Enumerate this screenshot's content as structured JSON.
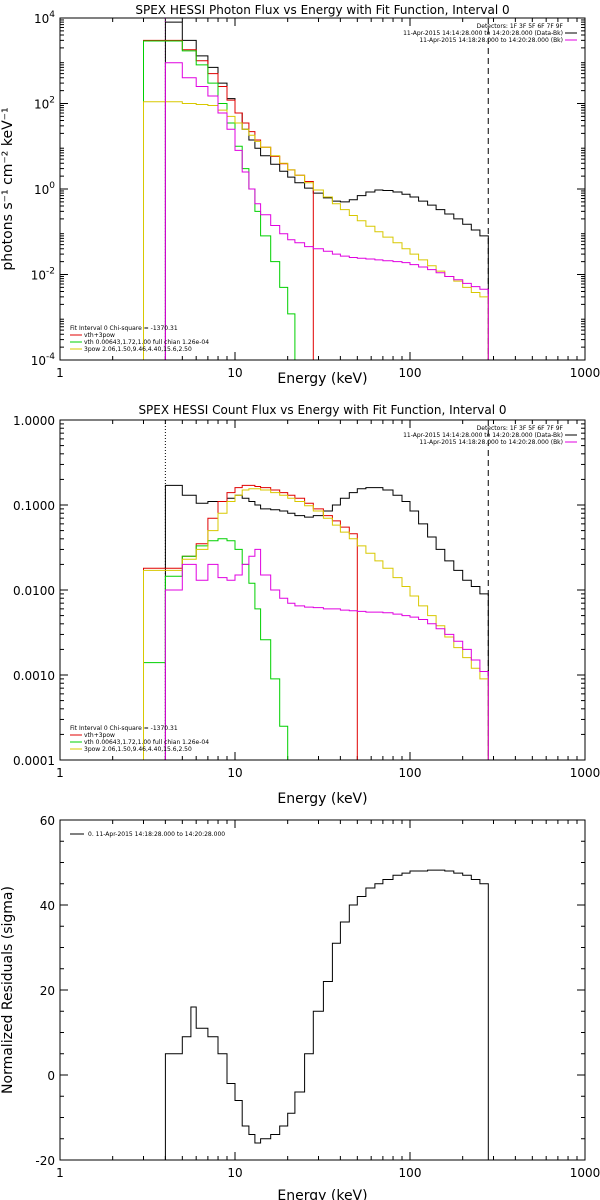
{
  "chart_data": [
    {
      "type": "line",
      "title": "SPEX HESSI Photon Flux vs Energy with Fit Function, Interval 0",
      "xlabel": "Energy (keV)",
      "ylabel": "photons s⁻¹ cm⁻² keV⁻¹",
      "xscale": "log",
      "yscale": "log",
      "xlim": [
        1,
        1000
      ],
      "ylim": [
        0.0001,
        10000
      ],
      "xtick_labels": [
        "1",
        "10",
        "100",
        "1000"
      ],
      "ytick_values": [
        0.0001,
        0.01,
        1,
        100,
        10000
      ],
      "ytick_labels": [
        {
          "base": "10",
          "exp": "-4"
        },
        {
          "base": "10",
          "exp": "-2"
        },
        {
          "base": "10",
          "exp": "0"
        },
        {
          "base": "10",
          "exp": "2"
        },
        {
          "base": "10",
          "exp": "4"
        }
      ],
      "legend_top": {
        "lines": [
          "Detectors: 1F 3F 5F 6F 7F 9F",
          "11-Apr-2015 14:14:28.000 to 14:20:28.000 (Data-Bk)",
          "11-Apr-2015 14:18:28.000 to 14:20:28.000 (Bk)"
        ],
        "colors": [
          "",
          "#000000",
          "#e000e0"
        ]
      },
      "legend_bottom": {
        "lines": [
          "Fit Interval 0   Chi-square = -1370.31",
          "vth+3pow",
          "vth 0.00643,1.72,1.00  full chian 1.26e-04",
          "3pow 2.06,1.50,9.46,4.40,15.6,2.50"
        ],
        "colors": [
          "",
          "#e00000",
          "#00d000",
          "#d8c800"
        ]
      },
      "vlines": [
        {
          "x": 4.0,
          "style": "dotted",
          "color": "#e000e0"
        },
        {
          "x": 280,
          "style": "dashed",
          "color": "#000000"
        }
      ],
      "series": [
        {
          "color": "#000000",
          "x": [
            3,
            4,
            5,
            6,
            7,
            8,
            9,
            10,
            11,
            12,
            13,
            14,
            16,
            18,
            20,
            22,
            25,
            28,
            32,
            36,
            40,
            45,
            50,
            56,
            63,
            70,
            80,
            90,
            100,
            112,
            126,
            141,
            158,
            178,
            200,
            224,
            251,
            280
          ],
          "y": [
            null,
            8000,
            3000,
            1300,
            700,
            300,
            130,
            60,
            25,
            14,
            9,
            6,
            3.8,
            2.6,
            1.9,
            1.4,
            1.05,
            0.8,
            0.62,
            0.52,
            0.5,
            0.56,
            0.7,
            0.85,
            0.95,
            0.92,
            0.85,
            0.75,
            0.65,
            0.52,
            0.42,
            0.33,
            0.26,
            0.2,
            0.15,
            0.11,
            0.08,
            0.06
          ]
        },
        {
          "color": "#e00000",
          "x": [
            3,
            4,
            5,
            6,
            7,
            8,
            9,
            10,
            11,
            12,
            13,
            14,
            16,
            18,
            20,
            22,
            25,
            28
          ],
          "y": [
            3000,
            3000,
            1800,
            1000,
            500,
            250,
            120,
            60,
            35,
            22,
            14,
            9.5,
            5.8,
            3.9,
            2.8,
            2.1,
            1.5,
            1.15
          ]
        },
        {
          "color": "#00d000",
          "x": [
            3,
            4,
            5,
            6,
            7,
            8,
            9,
            10,
            11,
            12,
            13,
            14,
            16,
            18,
            20,
            22
          ],
          "y": [
            2900,
            2900,
            1700,
            800,
            300,
            100,
            35,
            10,
            3,
            1,
            0.3,
            0.08,
            0.02,
            0.005,
            0.0012,
            0.0002
          ]
        },
        {
          "color": "#d8c800",
          "x": [
            3,
            4,
            5,
            6,
            7,
            8,
            9,
            10,
            11,
            12,
            13,
            14,
            16,
            18,
            20,
            22,
            25,
            28,
            32,
            36,
            40,
            45,
            50,
            56,
            63,
            70,
            80,
            90,
            100,
            112,
            126,
            141,
            158,
            178,
            200,
            224,
            251,
            280
          ],
          "y": [
            110,
            110,
            100,
            95,
            90,
            70,
            50,
            35,
            25,
            18,
            13,
            9.5,
            6,
            4,
            2.8,
            2.1,
            1.4,
            0.95,
            0.65,
            0.45,
            0.33,
            0.24,
            0.18,
            0.135,
            0.1,
            0.075,
            0.055,
            0.04,
            0.03,
            0.022,
            0.016,
            0.012,
            0.009,
            0.007,
            0.005,
            0.0038,
            0.003,
            0.0022
          ]
        },
        {
          "color": "#e000e0",
          "x": [
            3,
            4,
            5,
            6,
            7,
            8,
            9,
            10,
            11,
            12,
            13,
            14,
            16,
            18,
            20,
            22,
            25,
            28,
            32,
            36,
            40,
            45,
            50,
            56,
            63,
            70,
            80,
            90,
            100,
            112,
            126,
            141,
            158,
            178,
            200,
            224,
            251,
            280
          ],
          "y": [
            null,
            900,
            400,
            250,
            150,
            60,
            25,
            8,
            2.5,
            1,
            0.45,
            0.25,
            0.14,
            0.09,
            0.065,
            0.055,
            0.045,
            0.04,
            0.035,
            0.03,
            0.027,
            0.025,
            0.024,
            0.023,
            0.022,
            0.021,
            0.02,
            0.019,
            0.017,
            0.015,
            0.013,
            0.011,
            0.009,
            0.0075,
            0.0062,
            0.0052,
            0.0045,
            0.004
          ]
        }
      ]
    },
    {
      "type": "line",
      "title": "SPEX HESSI Count Flux vs Energy with Fit Function, Interval 0",
      "xlabel": "Energy (keV)",
      "ylabel": "",
      "xscale": "log",
      "yscale": "log",
      "xlim": [
        1,
        1000
      ],
      "ylim": [
        0.0001,
        1.0
      ],
      "xtick_labels": [
        "1",
        "10",
        "100",
        "1000"
      ],
      "ytick_values": [
        0.0001,
        0.001,
        0.01,
        0.1,
        1.0
      ],
      "ytick_labels": [
        "0.0001",
        "0.0010",
        "0.0100",
        "0.1000",
        "1.0000"
      ],
      "legend_top": {
        "lines": [
          "Detectors: 1F 3F 5F 6F 7F 9F",
          "11-Apr-2015 14:14:28.000 to 14:20:28.000 (Data-Bk)",
          "11-Apr-2015 14:18:28.000 to 14:20:28.000 (Bk)"
        ],
        "colors": [
          "",
          "#000000",
          "#e000e0"
        ]
      },
      "legend_bottom": {
        "lines": [
          "Fit Interval 0   Chi-square = -1370.31",
          "vth+3pow",
          "vth 0.00643,1.72,1.00  full chian 1.26e-04",
          "3pow 2.06,1.50,9.46,4.40,15.6,2.50"
        ],
        "colors": [
          "",
          "#e00000",
          "#00d000",
          "#d8c800"
        ]
      },
      "vlines": [
        {
          "x": 4.0,
          "style": "dotted",
          "color": "#000000"
        },
        {
          "x": 280,
          "style": "dashed",
          "color": "#000000"
        }
      ],
      "series": [
        {
          "color": "#000000",
          "x": [
            3,
            4,
            5,
            6,
            7,
            8,
            9,
            10,
            11,
            12,
            13,
            14,
            16,
            18,
            20,
            22,
            25,
            28,
            32,
            36,
            40,
            45,
            50,
            56,
            63,
            70,
            80,
            90,
            100,
            112,
            126,
            141,
            158,
            178,
            200,
            224,
            251,
            280
          ],
          "y": [
            null,
            0.17,
            0.13,
            0.105,
            0.11,
            0.11,
            0.12,
            0.13,
            0.12,
            0.11,
            0.1,
            0.09,
            0.088,
            0.085,
            0.08,
            0.075,
            0.072,
            0.075,
            0.085,
            0.1,
            0.12,
            0.14,
            0.155,
            0.16,
            0.16,
            0.15,
            0.13,
            0.11,
            0.085,
            0.06,
            0.042,
            0.03,
            0.022,
            0.017,
            0.013,
            0.011,
            0.009,
            0.008
          ]
        },
        {
          "color": "#e00000",
          "x": [
            3,
            4,
            5,
            6,
            7,
            8,
            9,
            10,
            11,
            12,
            13,
            14,
            16,
            18,
            20,
            22,
            25,
            28,
            32,
            36,
            40,
            45,
            50
          ],
          "y": [
            0.018,
            0.018,
            0.025,
            0.035,
            0.07,
            0.11,
            0.14,
            0.16,
            0.17,
            0.17,
            0.165,
            0.16,
            0.15,
            0.14,
            0.13,
            0.12,
            0.105,
            0.09,
            0.075,
            0.065,
            0.055,
            0.046,
            0.04
          ]
        },
        {
          "color": "#00d000",
          "x": [
            3,
            4,
            5,
            6,
            7,
            8,
            9,
            10,
            11,
            12,
            13,
            14,
            16,
            18,
            20
          ],
          "y": [
            0.0014,
            0.0145,
            0.025,
            0.033,
            0.038,
            0.04,
            0.038,
            0.03,
            0.02,
            0.012,
            0.006,
            0.0026,
            0.0009,
            0.00025,
            5e-05
          ]
        },
        {
          "color": "#d8c800",
          "x": [
            3,
            4,
            5,
            6,
            7,
            8,
            9,
            10,
            11,
            12,
            13,
            14,
            16,
            18,
            20,
            22,
            25,
            28,
            32,
            36,
            40,
            45,
            50,
            56,
            63,
            70,
            80,
            90,
            100,
            112,
            126,
            141,
            158,
            178,
            200,
            224,
            251,
            280
          ],
          "y": [
            0.017,
            0.017,
            0.023,
            0.03,
            0.05,
            0.08,
            0.11,
            0.13,
            0.15,
            0.155,
            0.155,
            0.15,
            0.14,
            0.13,
            0.12,
            0.11,
            0.098,
            0.085,
            0.07,
            0.058,
            0.048,
            0.04,
            0.033,
            0.027,
            0.022,
            0.018,
            0.014,
            0.011,
            0.0085,
            0.0065,
            0.005,
            0.0038,
            0.0028,
            0.0021,
            0.0016,
            0.0012,
            0.0009,
            0.0005
          ]
        },
        {
          "color": "#e000e0",
          "x": [
            3,
            4,
            5,
            6,
            7,
            8,
            9,
            10,
            11,
            12,
            13,
            14,
            16,
            18,
            20,
            22,
            25,
            28,
            32,
            36,
            40,
            45,
            50,
            56,
            63,
            70,
            80,
            90,
            100,
            112,
            126,
            141,
            158,
            178,
            200,
            224,
            251,
            280
          ],
          "y": [
            null,
            0.01,
            0.02,
            0.013,
            0.02,
            0.014,
            0.013,
            0.015,
            0.02,
            0.025,
            0.03,
            0.015,
            0.01,
            0.008,
            0.007,
            0.0065,
            0.0063,
            0.0062,
            0.006,
            0.006,
            0.0058,
            0.0057,
            0.0056,
            0.0055,
            0.0055,
            0.0054,
            0.0052,
            0.005,
            0.0048,
            0.0045,
            0.004,
            0.0035,
            0.003,
            0.0025,
            0.002,
            0.0015,
            0.0011,
            0.0008
          ]
        }
      ]
    },
    {
      "type": "line",
      "title": "",
      "xlabel": "Energy (keV)",
      "ylabel": "Normalized Residuals (sigma)",
      "xscale": "log",
      "yscale": "linear",
      "xlim": [
        1,
        1000
      ],
      "ylim": [
        -20,
        60
      ],
      "xtick_labels": [
        "1",
        "10",
        "100",
        "1000"
      ],
      "ytick_values": [
        -20,
        0,
        20,
        40,
        60
      ],
      "ytick_labels": [
        "-20",
        "0",
        "20",
        "40",
        "60"
      ],
      "legend_top": {
        "lines": [
          "0. 11-Apr-2015 14:18:28.000 to 14:20:28.000"
        ],
        "colors": [
          "#000000"
        ]
      },
      "series": [
        {
          "color": "#000000",
          "x": [
            4,
            5,
            5.6,
            6,
            7,
            8,
            9,
            10,
            11,
            12,
            13,
            14,
            16,
            18,
            20,
            22,
            25,
            28,
            32,
            36,
            40,
            45,
            50,
            56,
            63,
            70,
            80,
            90,
            100,
            112,
            126,
            141,
            158,
            178,
            200,
            224,
            251,
            280
          ],
          "y": [
            5,
            9,
            16,
            11,
            9,
            5,
            -2,
            -6,
            -12,
            -14,
            -16,
            -15,
            -14,
            -12,
            -9,
            -4,
            5,
            15,
            22,
            31,
            36,
            40,
            42,
            44,
            45,
            46,
            47,
            47.5,
            48,
            48,
            48.2,
            48.2,
            48,
            47.5,
            47,
            46,
            45,
            44.5
          ]
        }
      ]
    }
  ]
}
